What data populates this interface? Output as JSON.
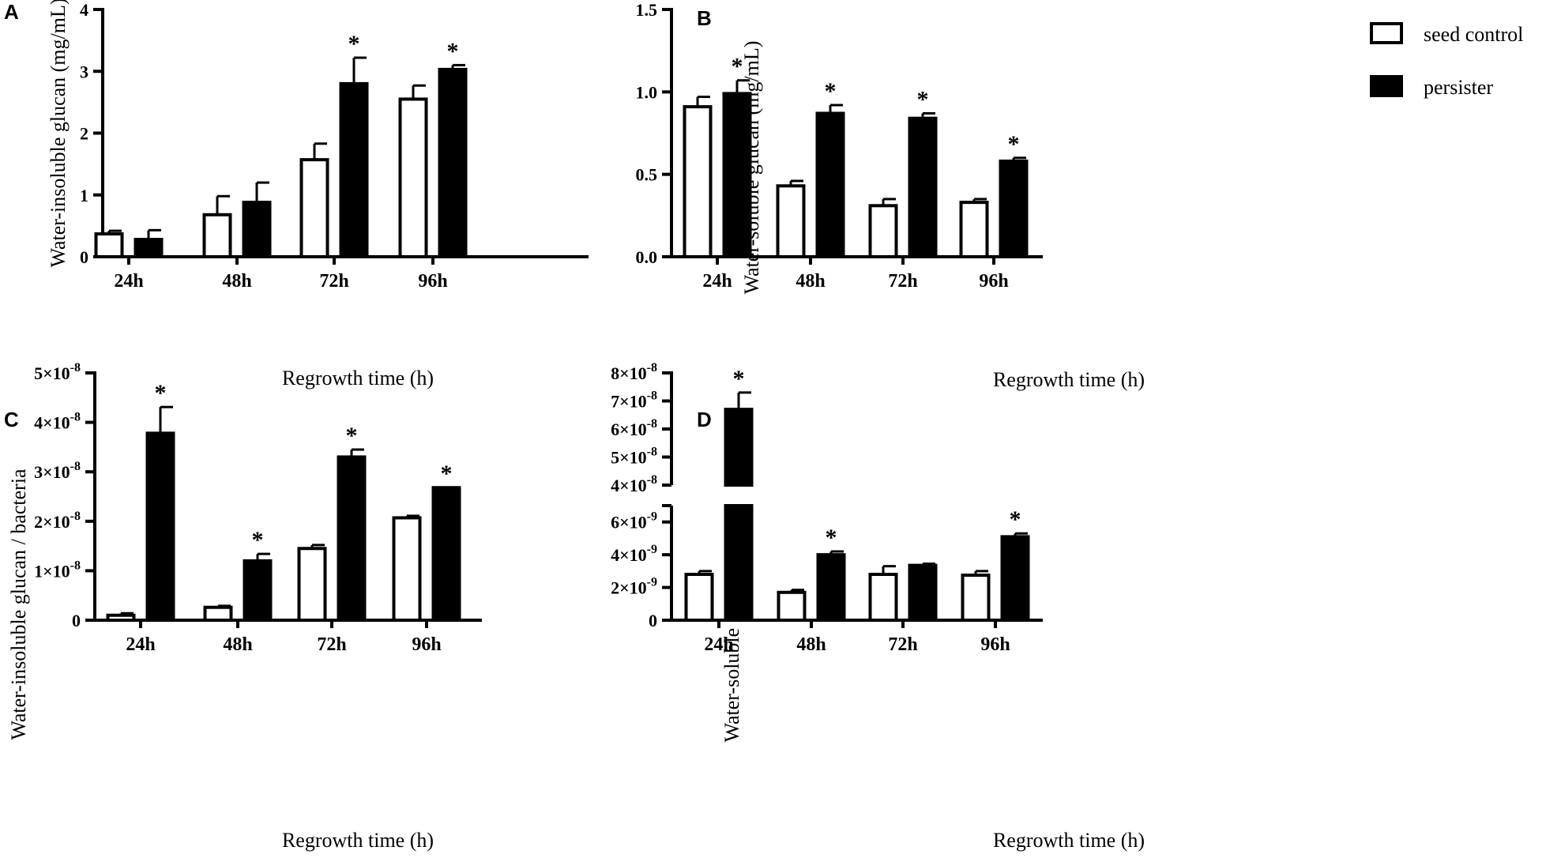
{
  "legend": {
    "items": [
      {
        "label": "seed control",
        "fill": "#ffffff"
      },
      {
        "label": "persister",
        "fill": "#000000"
      }
    ]
  },
  "colors": {
    "seed_control": "#ffffff",
    "persister": "#000000",
    "axis": "#000000"
  },
  "chart_data": [
    {
      "panel": "A",
      "type": "bar",
      "categories": [
        "24h",
        "48h",
        "72h",
        "96h"
      ],
      "series": [
        {
          "name": "seed control",
          "values": [
            0.37,
            0.68,
            1.57,
            2.55
          ],
          "errors": [
            0.05,
            0.3,
            0.26,
            0.22
          ],
          "sig": [
            false,
            false,
            false,
            false
          ]
        },
        {
          "name": "persister",
          "values": [
            0.28,
            0.88,
            2.8,
            3.03
          ],
          "errors": [
            0.15,
            0.32,
            0.42,
            0.07
          ],
          "sig": [
            false,
            false,
            true,
            true
          ]
        }
      ],
      "ylabel": "Water-insoluble glucan (mg/mL)",
      "xlabel": "Regrowth time (h)",
      "ylim": [
        0,
        4
      ],
      "yticks": [
        0,
        1,
        2,
        3,
        4
      ],
      "ytick_labels": [
        "0",
        "1",
        "2",
        "3",
        "4"
      ],
      "legend": "top-right"
    },
    {
      "panel": "B",
      "type": "bar",
      "categories": [
        "24h",
        "48h",
        "72h",
        "96h"
      ],
      "series": [
        {
          "name": "seed control",
          "values": [
            0.91,
            0.43,
            0.31,
            0.33
          ],
          "errors": [
            0.06,
            0.03,
            0.04,
            0.02
          ],
          "sig": [
            false,
            false,
            false,
            false
          ]
        },
        {
          "name": "persister",
          "values": [
            0.99,
            0.87,
            0.84,
            0.58
          ],
          "errors": [
            0.08,
            0.05,
            0.03,
            0.02
          ],
          "sig": [
            true,
            true,
            true,
            true
          ]
        }
      ],
      "ylabel": "Water-soluble glucan (mg/mL)",
      "xlabel": "Regrowth time (h)",
      "ylim": [
        0,
        1.5
      ],
      "yticks": [
        0,
        0.5,
        1.0,
        1.5
      ],
      "ytick_labels": [
        "0.0",
        "0.5",
        "1.0",
        "1.5"
      ]
    },
    {
      "panel": "C",
      "type": "bar",
      "categories": [
        "24h",
        "48h",
        "72h",
        "96h"
      ],
      "series": [
        {
          "name": "seed control",
          "values": [
            1e-09,
            2.6e-09,
            1.45e-08,
            2.07e-08
          ],
          "errors": [
            4e-10,
            3e-10,
            7e-10,
            4e-10
          ],
          "sig": [
            false,
            false,
            false,
            false
          ]
        },
        {
          "name": "persister",
          "values": [
            3.78e-08,
            1.2e-08,
            3.3e-08,
            2.68e-08
          ],
          "errors": [
            5.3e-09,
            1.4e-09,
            1.5e-09,
            0
          ],
          "sig": [
            true,
            true,
            true,
            true
          ]
        }
      ],
      "ylabel": "Water-insoluble glucan / bacteria",
      "xlabel": "Regrowth time (h)",
      "ylim": [
        0,
        5e-08
      ],
      "yticks": [
        0,
        1e-08,
        2e-08,
        3e-08,
        4e-08,
        5e-08
      ],
      "ytick_labels": [
        {
          "base": "0",
          "exp": ""
        },
        {
          "base": "1×10",
          "exp": "-8"
        },
        {
          "base": "2×10",
          "exp": "-8"
        },
        {
          "base": "3×10",
          "exp": "-8"
        },
        {
          "base": "4×10",
          "exp": "-8"
        },
        {
          "base": "5×10",
          "exp": "-8"
        }
      ]
    },
    {
      "panel": "D",
      "type": "bar",
      "categories": [
        "24h",
        "48h",
        "72h",
        "96h"
      ],
      "series": [
        {
          "name": "seed control",
          "values": [
            2.8e-09,
            1.7e-09,
            2.8e-09,
            2.75e-09
          ],
          "errors": [
            2e-10,
            1.5e-10,
            5e-10,
            2.5e-10
          ],
          "sig": [
            false,
            false,
            false,
            false
          ]
        },
        {
          "name": "persister",
          "values": [
            6.7e-08,
            4e-09,
            3.35e-09,
            5.1e-09
          ],
          "errors": [
            6e-09,
            2e-10,
            1e-10,
            2e-10
          ],
          "sig": [
            true,
            true,
            false,
            true
          ]
        }
      ],
      "ylabel": "Water-soluble glucan / bacteria",
      "xlabel": "Regrowth time (h)",
      "broken_axis": {
        "lower": [
          0,
          7e-09
        ],
        "upper": [
          4e-08,
          8e-08
        ]
      },
      "yticks_lower": [
        0,
        2e-09,
        4e-09,
        6e-09
      ],
      "ytick_labels_lower": [
        {
          "base": "0",
          "exp": ""
        },
        {
          "base": "2×10",
          "exp": "-9"
        },
        {
          "base": "4×10",
          "exp": "-9"
        },
        {
          "base": "6×10",
          "exp": "-9"
        }
      ],
      "yticks_upper": [
        4e-08,
        5e-08,
        6e-08,
        7e-08,
        8e-08
      ],
      "ytick_labels_upper": [
        {
          "base": "4×10",
          "exp": "-8"
        },
        {
          "base": "5×10",
          "exp": "-8"
        },
        {
          "base": "6×10",
          "exp": "-8"
        },
        {
          "base": "7×10",
          "exp": "-8"
        },
        {
          "base": "8×10",
          "exp": "-8"
        }
      ]
    }
  ]
}
